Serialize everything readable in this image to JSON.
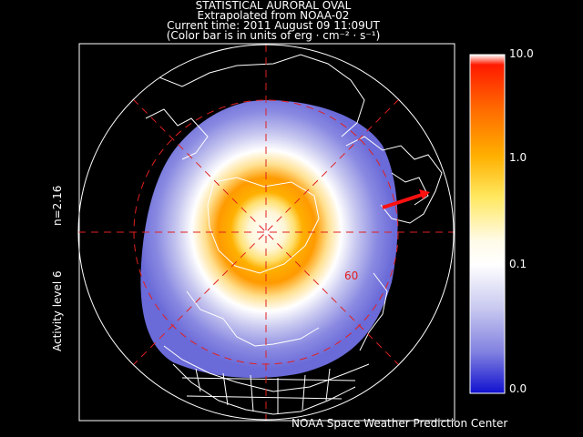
{
  "header": {
    "line1": "STATISTICAL AURORAL OVAL",
    "line2": "Extrapolated from NOAA-02",
    "line3": "Current time: 2011 August 09 11:09UT",
    "line4": "(Color bar is in units of erg · cm⁻² · s⁻¹)"
  },
  "side": {
    "n_value": "n=2.16",
    "activity": "Activity level 6"
  },
  "colorbar": {
    "labels": [
      "10.0",
      "1.0",
      "0.1",
      "0.0"
    ],
    "stops": [
      "#ffffff",
      "#ff2200",
      "#ff7a00",
      "#ffd000",
      "#fff8c0",
      "#ffffff",
      "#c8c8f0",
      "#8080e0",
      "#1010d0"
    ]
  },
  "map": {
    "latitude_label": "60",
    "grid_color": "#e02020",
    "coast_color": "#ffffff"
  },
  "footer": {
    "credit": "NOAA Space Weather Prediction Center"
  }
}
